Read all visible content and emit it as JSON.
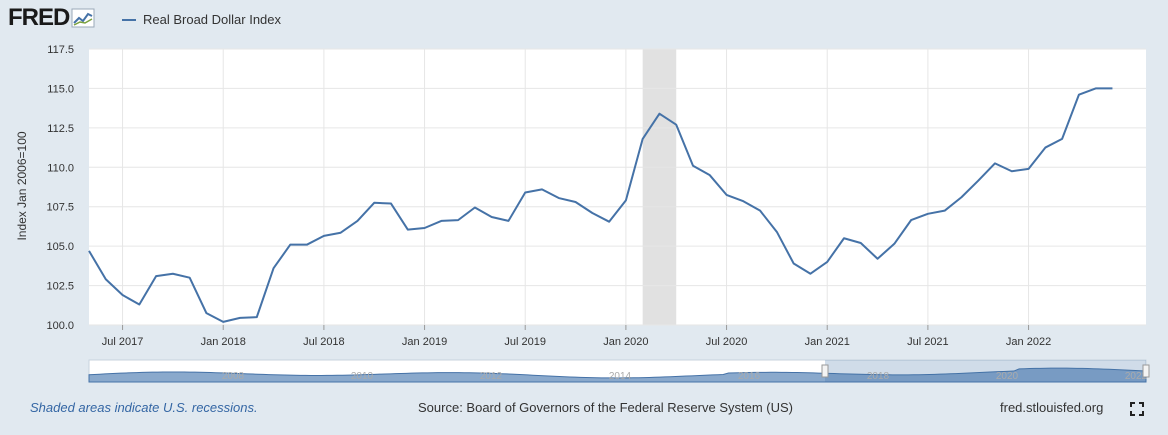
{
  "header": {
    "logo_text": "FRED",
    "legend_label": "Real Broad Dollar Index"
  },
  "footer": {
    "recession_note": "Shaded areas indicate U.S. recessions.",
    "source": "Source: Board of Governors of the Federal Reserve System (US)",
    "site": "fred.stlouisfed.org"
  },
  "icons": {
    "logo": "fred-chart-logo-icon",
    "fullscreen": "fullscreen-icon"
  },
  "colors": {
    "series": "#4572a7",
    "recession": "#e1e1e1",
    "background": "#e1e9f0"
  },
  "chart_data": {
    "type": "line",
    "title": "",
    "xlabel": "",
    "ylabel": "Index Jan 2006=100",
    "ylim": [
      100,
      117.5
    ],
    "yticks": [
      "100.0",
      "102.5",
      "105.0",
      "107.5",
      "110.0",
      "112.5",
      "115.0",
      "117.5"
    ],
    "xlim": [
      "2017-05",
      "2022-08"
    ],
    "xticks": [
      "Jul 2017",
      "Jan 2018",
      "Jul 2018",
      "Jan 2019",
      "Jul 2019",
      "Jan 2020",
      "Jul 2020",
      "Jan 2021",
      "Jul 2021",
      "Jan 2022"
    ],
    "grid": true,
    "recessions": [
      [
        "2020-02",
        "2020-04"
      ]
    ],
    "series": [
      {
        "name": "Real Broad Dollar Index",
        "x": [
          "2017-05",
          "2017-06",
          "2017-07",
          "2017-08",
          "2017-09",
          "2017-10",
          "2017-11",
          "2017-12",
          "2018-01",
          "2018-02",
          "2018-03",
          "2018-04",
          "2018-05",
          "2018-06",
          "2018-07",
          "2018-08",
          "2018-09",
          "2018-10",
          "2018-11",
          "2018-12",
          "2019-01",
          "2019-02",
          "2019-03",
          "2019-04",
          "2019-05",
          "2019-06",
          "2019-07",
          "2019-08",
          "2019-09",
          "2019-10",
          "2019-11",
          "2019-12",
          "2020-01",
          "2020-02",
          "2020-03",
          "2020-04",
          "2020-05",
          "2020-06",
          "2020-07",
          "2020-08",
          "2020-09",
          "2020-10",
          "2020-11",
          "2020-12",
          "2021-01",
          "2021-02",
          "2021-03",
          "2021-04",
          "2021-05",
          "2021-06",
          "2021-07",
          "2021-08",
          "2021-09",
          "2021-10",
          "2021-11",
          "2021-12",
          "2022-01",
          "2022-02",
          "2022-03",
          "2022-04",
          "2022-05",
          "2022-06"
        ],
        "values": [
          104.7,
          102.9,
          101.9,
          101.3,
          103.1,
          103.25,
          103.0,
          100.75,
          100.2,
          100.45,
          100.5,
          103.6,
          105.1,
          105.1,
          105.65,
          105.85,
          106.6,
          107.75,
          107.7,
          106.05,
          106.15,
          106.6,
          106.65,
          107.45,
          106.85,
          106.6,
          108.4,
          108.6,
          108.05,
          107.8,
          107.1,
          106.55,
          107.9,
          111.8,
          113.4,
          112.7,
          110.1,
          109.5,
          108.25,
          107.85,
          107.25,
          105.9,
          103.9,
          103.25,
          104.0,
          105.5,
          105.2,
          104.2,
          105.15,
          106.65,
          107.05,
          107.25,
          108.1,
          109.15,
          110.25,
          109.75,
          109.9,
          111.25,
          111.8,
          114.6,
          115.0,
          115.0
        ]
      }
    ],
    "navigator_labels": [
      "2008",
      "2010",
      "2012",
      "2014",
      "2016",
      "2018",
      "2020",
      "2022"
    ]
  }
}
